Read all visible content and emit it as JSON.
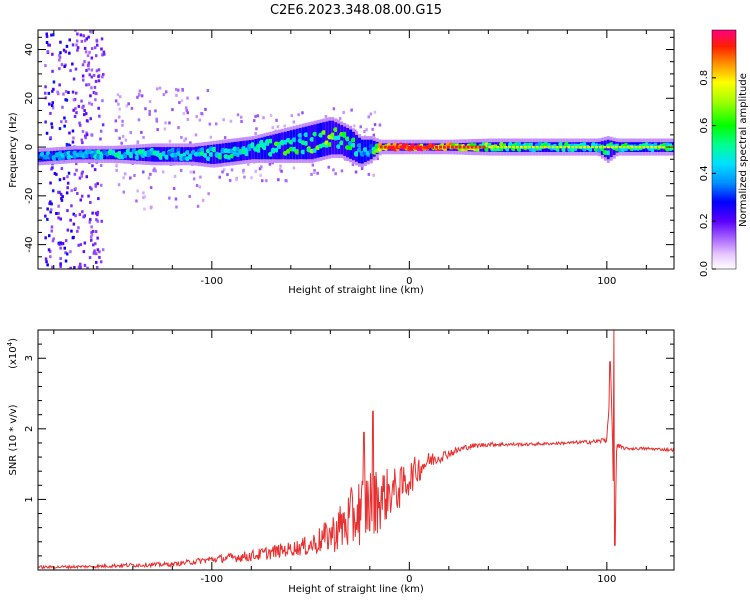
{
  "figure": {
    "title": "C2E6.2023.348.08.00.G15"
  },
  "chart_data": [
    {
      "type": "heatmap",
      "xlabel": "Height of straight line (km)",
      "ylabel": "Frequency (Hz)",
      "xlim": [
        -188,
        134
      ],
      "ylim": [
        -50,
        48
      ],
      "x_ticks": [
        -100,
        0,
        100
      ],
      "x_tick_labels": [
        "-100",
        "0",
        "100"
      ],
      "y_ticks": [
        -40,
        -20,
        0,
        20,
        40
      ],
      "y_tick_labels": [
        "-40",
        "-20",
        "0",
        "20",
        "40"
      ],
      "colorbar": {
        "label": "Normalized spectral amplitude",
        "range": [
          0,
          1
        ],
        "ticks": [
          0.0,
          0.2,
          0.4,
          0.6,
          0.8
        ],
        "tick_labels": [
          "0.0",
          "0.2",
          "0.4",
          "0.6",
          "0.8"
        ]
      },
      "ridge": {
        "x": [
          -188,
          -170,
          -150,
          -130,
          -110,
          -100,
          -90,
          -80,
          -70,
          -60,
          -50,
          -40,
          -35,
          -30,
          -25,
          -20,
          -15,
          0,
          20,
          40,
          60,
          80,
          95,
          100,
          105,
          120,
          134
        ],
        "center_hz": [
          -4,
          -3,
          -3,
          -3,
          -3,
          -3,
          -2,
          -1,
          0,
          1,
          2,
          4,
          3,
          1,
          -2,
          -1,
          0,
          0,
          0,
          0,
          0,
          0,
          0,
          -1,
          0,
          0,
          0
        ],
        "halfwidth_hz": [
          2,
          2,
          2,
          3,
          3,
          4,
          4,
          4,
          5,
          6,
          7,
          7,
          6,
          6,
          5,
          4,
          1.5,
          1.5,
          1.5,
          2,
          2,
          2,
          2,
          4,
          2,
          2,
          2
        ],
        "amplitude": [
          0.35,
          0.4,
          0.45,
          0.45,
          0.45,
          0.45,
          0.5,
          0.5,
          0.55,
          0.55,
          0.6,
          0.6,
          0.55,
          0.5,
          0.45,
          0.4,
          0.9,
          0.9,
          0.8,
          0.6,
          0.5,
          0.5,
          0.5,
          0.5,
          0.5,
          0.5,
          0.5
        ]
      }
    },
    {
      "type": "line",
      "xlabel": "Height of straight line (km)",
      "ylabel": "SNR (10 * v/v)",
      "y_multiplier_label": "(x10",
      "y_multiplier_exp": "4",
      "xlim": [
        -188,
        134
      ],
      "ylim": [
        0,
        3.4
      ],
      "x_ticks": [
        -100,
        0,
        100
      ],
      "x_tick_labels": [
        "-100",
        "0",
        "100"
      ],
      "y_ticks": [
        1,
        2,
        3
      ],
      "y_tick_labels": [
        "1",
        "2",
        "3"
      ],
      "series": [
        {
          "color": "#e83030",
          "x": [
            -188,
            -160,
            -140,
            -120,
            -100,
            -80,
            -70,
            -60,
            -50,
            -40,
            -35,
            -30,
            -25,
            -20,
            -15,
            -10,
            -5,
            0,
            5,
            10,
            20,
            30,
            40,
            60,
            80,
            95,
            100,
            102,
            104,
            105,
            110,
            120,
            134
          ],
          "y": [
            0.04,
            0.05,
            0.07,
            0.08,
            0.15,
            0.2,
            0.25,
            0.3,
            0.35,
            0.5,
            0.6,
            0.7,
            0.85,
            0.95,
            1.0,
            1.1,
            1.15,
            1.3,
            1.45,
            1.55,
            1.65,
            1.75,
            1.78,
            1.78,
            1.8,
            1.82,
            1.85,
            2.8,
            0.4,
            1.75,
            1.72,
            1.72,
            1.7
          ],
          "noise": [
            0.02,
            0.02,
            0.03,
            0.03,
            0.05,
            0.08,
            0.1,
            0.1,
            0.15,
            0.25,
            0.35,
            0.45,
            0.5,
            0.55,
            0.45,
            0.35,
            0.3,
            0.25,
            0.2,
            0.12,
            0.06,
            0.04,
            0.03,
            0.02,
            0.02,
            0.03,
            0.05,
            0.1,
            0.1,
            0.05,
            0.02,
            0.02,
            0.02
          ],
          "spikes": [
            {
              "x": -18.5,
              "y": 2.25
            },
            {
              "x": -23,
              "y": 1.95
            },
            {
              "x": 101.5,
              "y": 2.95
            },
            {
              "x": 103.5,
              "y": 3.4
            },
            {
              "x": 104,
              "y": 0.35
            }
          ]
        }
      ]
    }
  ]
}
